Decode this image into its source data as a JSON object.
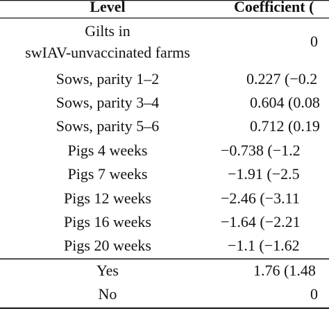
{
  "table": {
    "header": [
      "Level",
      "Coefficient ("
    ],
    "rows": [
      [
        [
          "Gilts in",
          "swIAV-unvaccinated farms"
        ],
        "0"
      ],
      [
        "Sows, parity 1–2",
        "0.227 (−0.2"
      ],
      [
        "Sows, parity 3–4",
        "0.604 (0.08"
      ],
      [
        "Sows, parity 5–6",
        "0.712 (0.19"
      ],
      [
        "Pigs 4 weeks",
        "−0.738 (−1.2"
      ],
      [
        "Pigs 7 weeks",
        "−1.91 (−2.5"
      ],
      [
        "Pigs 12 weeks",
        "−2.46 (−3.11"
      ],
      [
        "Pigs 16 weeks",
        "−1.64 (−2.21"
      ],
      [
        "Pigs 20 weeks",
        "−1.1 (−1.62"
      ],
      [
        "Yes",
        "1.76 (1.48"
      ],
      [
        "No",
        "0"
      ]
    ]
  }
}
